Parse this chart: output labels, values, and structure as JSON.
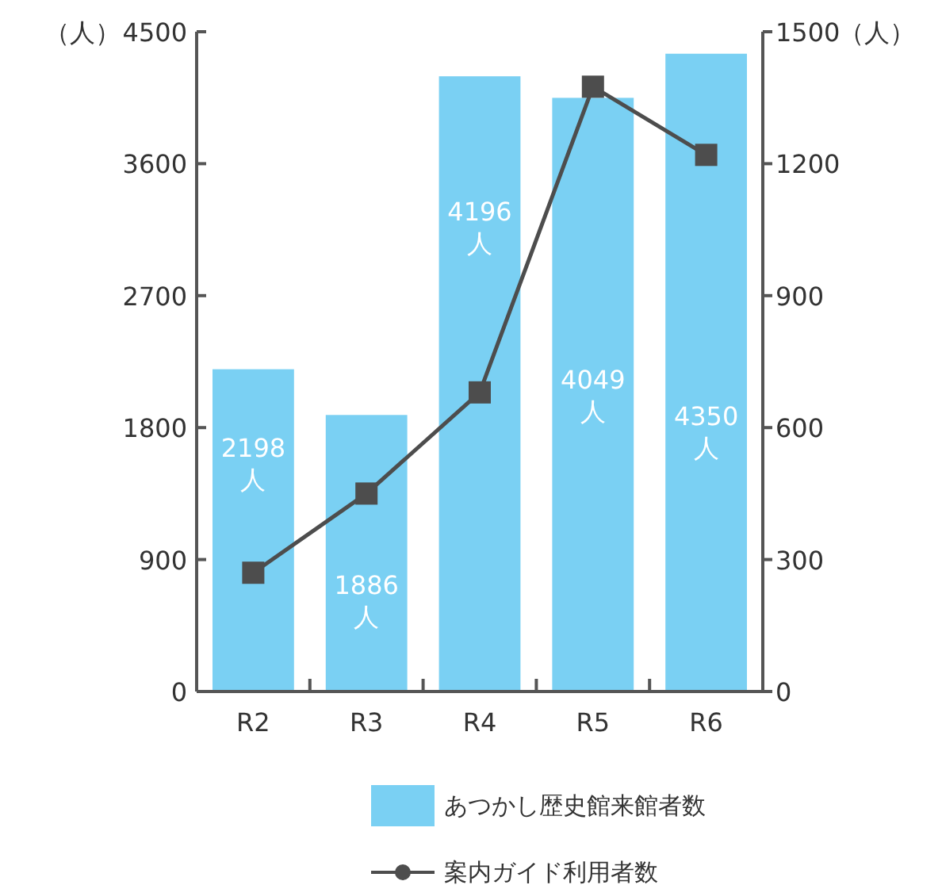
{
  "chart_data": {
    "type": "bar",
    "categories": [
      "R2",
      "R3",
      "R4",
      "R5",
      "R6"
    ],
    "ylabel": "（人）",
    "y2label": "（人）",
    "ylim": [
      0,
      4500
    ],
    "yticks": [
      0,
      900,
      1800,
      2700,
      3600,
      4500
    ],
    "y2lim": [
      0,
      1500
    ],
    "y2ticks": [
      0,
      300,
      600,
      900,
      1200,
      1500
    ],
    "series": [
      {
        "name": "あつかし歴史館来館者数",
        "color": "#7ad0f3",
        "values": [
          2198,
          1886,
          4196,
          4049,
          4350
        ],
        "value_labels": [
          "2198\n人",
          "1886\n人",
          "4196\n人",
          "4049\n人",
          "4350\n人"
        ]
      },
      {
        "name": "案内ガイド利用者数",
        "type": "line",
        "axis": "y2",
        "color": "#4d4d4d",
        "marker": "square",
        "line_style": "solid",
        "values": [
          270,
          450,
          680,
          1375,
          1220
        ]
      }
    ],
    "legend": "bottom",
    "grid": false
  }
}
